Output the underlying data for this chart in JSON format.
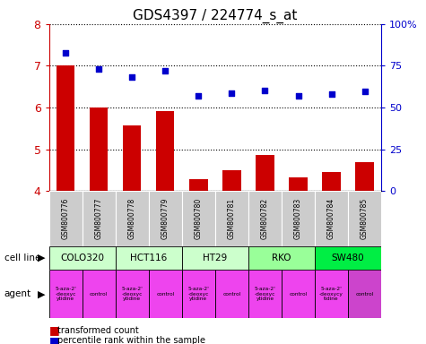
{
  "title": "GDS4397 / 224774_s_at",
  "samples": [
    "GSM800776",
    "GSM800777",
    "GSM800778",
    "GSM800779",
    "GSM800780",
    "GSM800781",
    "GSM800782",
    "GSM800783",
    "GSM800784",
    "GSM800785"
  ],
  "bar_values": [
    7.02,
    6.01,
    5.57,
    5.92,
    4.28,
    4.5,
    4.87,
    4.32,
    4.46,
    4.68
  ],
  "dot_values": [
    7.3,
    6.92,
    6.72,
    6.88,
    6.28,
    6.35,
    6.4,
    6.28,
    6.32,
    6.38
  ],
  "ylim": [
    4.0,
    8.0
  ],
  "yticks": [
    4,
    5,
    6,
    7,
    8
  ],
  "bar_color": "#cc0000",
  "dot_color": "#0000cc",
  "left_tick_color": "#cc0000",
  "right_axis_color": "#0000cc",
  "cell_lines": [
    {
      "name": "COLO320",
      "start": 0,
      "end": 2,
      "color": "#ccffcc"
    },
    {
      "name": "HCT116",
      "start": 2,
      "end": 4,
      "color": "#ccffcc"
    },
    {
      "name": "HT29",
      "start": 4,
      "end": 6,
      "color": "#ccffcc"
    },
    {
      "name": "RKO",
      "start": 6,
      "end": 8,
      "color": "#99ff99"
    },
    {
      "name": "SW480",
      "start": 8,
      "end": 10,
      "color": "#00ee44"
    }
  ],
  "agents": [
    {
      "name": "5-aza-2'\n-deoxyc\nytidine",
      "start": 0,
      "end": 1,
      "color": "#ee44ee"
    },
    {
      "name": "control",
      "start": 1,
      "end": 2,
      "color": "#ee44ee"
    },
    {
      "name": "5-aza-2'\n-deoxyc\nytidine",
      "start": 2,
      "end": 3,
      "color": "#ee44ee"
    },
    {
      "name": "control",
      "start": 3,
      "end": 4,
      "color": "#ee44ee"
    },
    {
      "name": "5-aza-2'\n-deoxyc\nytidine",
      "start": 4,
      "end": 5,
      "color": "#ee44ee"
    },
    {
      "name": "control",
      "start": 5,
      "end": 6,
      "color": "#ee44ee"
    },
    {
      "name": "5-aza-2'\n-deoxyc\nytidine",
      "start": 6,
      "end": 7,
      "color": "#ee44ee"
    },
    {
      "name": "control",
      "start": 7,
      "end": 8,
      "color": "#ee44ee"
    },
    {
      "name": "5-aza-2'\n-deoxycy\ntidine",
      "start": 8,
      "end": 9,
      "color": "#ee44ee"
    },
    {
      "name": "control",
      "start": 9,
      "end": 10,
      "color": "#cc44cc"
    }
  ],
  "legend_red": "transformed count",
  "legend_blue": "percentile rank within the sample",
  "label_cell_line": "cell line",
  "label_agent": "agent",
  "sample_row_color": "#cccccc",
  "right_ytick_labels": [
    "0",
    "25",
    "50",
    "75",
    "100%"
  ]
}
